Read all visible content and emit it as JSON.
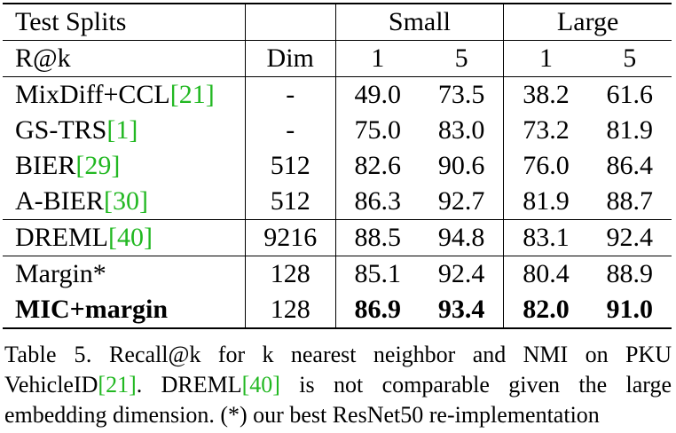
{
  "table": {
    "header1": {
      "left": "Test Splits",
      "group_small": "Small",
      "group_large": "Large"
    },
    "header2": {
      "metric": "R@k",
      "dim": "Dim",
      "s1": "1",
      "s5": "5",
      "l1": "1",
      "l5": "5"
    },
    "rows": [
      {
        "method": "MixDiff+CCL",
        "ref": "[21]",
        "dim": "-",
        "s1": "49.0",
        "s5": "73.5",
        "l1": "38.2",
        "l5": "61.6"
      },
      {
        "method": "GS-TRS",
        "ref": "[1]",
        "dim": "-",
        "s1": "75.0",
        "s5": "83.0",
        "l1": "73.2",
        "l5": "81.9"
      },
      {
        "method": "BIER",
        "ref": "[29]",
        "dim": "512",
        "s1": "82.6",
        "s5": "90.6",
        "l1": "76.0",
        "l5": "86.4"
      },
      {
        "method": "A-BIER",
        "ref": "[30]",
        "dim": "512",
        "s1": "86.3",
        "s5": "92.7",
        "l1": "81.9",
        "l5": "88.7"
      },
      {
        "method": "DREML",
        "ref": "[40]",
        "dim": "9216",
        "s1": "88.5",
        "s5": "94.8",
        "l1": "83.1",
        "l5": "92.4"
      },
      {
        "method": "Margin*",
        "ref": "",
        "dim": "128",
        "s1": "85.1",
        "s5": "92.4",
        "l1": "80.4",
        "l5": "88.9"
      },
      {
        "method": "MIC+margin",
        "ref": "",
        "dim": "128",
        "s1": "86.9",
        "s5": "93.4",
        "l1": "82.0",
        "l5": "91.0"
      }
    ]
  },
  "caption": {
    "label": "Table 5.",
    "text_1": " Recall@k for k nearest neighbor and NMI on PKU VehicleID",
    "ref_1": "[21]",
    "text_2": ". DREML",
    "ref_2": "[40]",
    "text_3": " is not comparable given the large embedding dimension. (*) our best ResNet50 re-implementation"
  },
  "colors": {
    "citation": "#22b822",
    "text": "#000000",
    "background": "#ffffff"
  }
}
